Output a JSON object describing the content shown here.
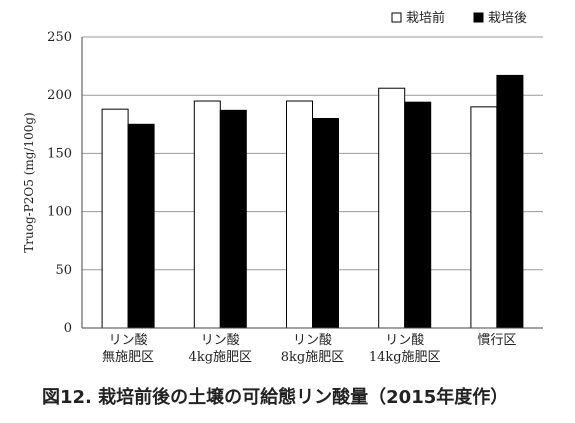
{
  "figure": {
    "caption": "図12.  栽培前後の土壌の可給態リン酸量（2015年度作）"
  },
  "chart_data": {
    "type": "bar",
    "categories": [
      [
        "リン酸",
        "無施肥区"
      ],
      [
        "リン酸",
        "4kg施肥区"
      ],
      [
        "リン酸",
        "8kg施肥区"
      ],
      [
        "リン酸",
        "14kg施肥区"
      ],
      [
        "慣行区"
      ]
    ],
    "series": [
      {
        "name": "栽培前",
        "color": "#ffffff",
        "values": [
          188,
          195,
          195,
          206,
          190
        ]
      },
      {
        "name": "栽培後",
        "color": "#000000",
        "values": [
          175,
          187,
          180,
          194,
          217
        ]
      }
    ],
    "ylabel": "Truog-P2O5 (mg/100g)",
    "ylim": [
      0,
      250
    ],
    "yticks": [
      0,
      50,
      100,
      150,
      200,
      250
    ],
    "grid": true,
    "legend_position": "top-right"
  }
}
